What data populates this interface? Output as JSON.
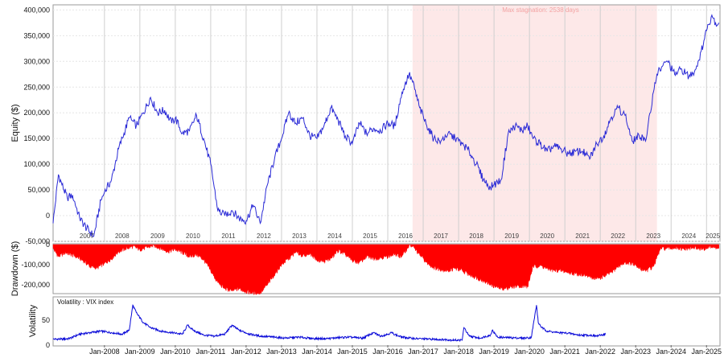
{
  "colors": {
    "equity": "#2b2bd6",
    "drawdown": "#ff0000",
    "volatility": "#0a0ad8",
    "stagnation": "#fde8e8",
    "grid": "#d9d9d9",
    "frame": "#9a9a9a"
  },
  "chart_data": [
    {
      "type": "line",
      "ylabel": "Equity ($)",
      "ylim": [
        -50000,
        410000
      ],
      "yticks": [
        {
          "value": 400000,
          "label": "400,000"
        },
        {
          "value": 350000,
          "label": "350,000"
        },
        {
          "value": 300000,
          "label": "300,000"
        },
        {
          "value": 250000,
          "label": "250,000"
        },
        {
          "value": 200000,
          "label": "200,000"
        },
        {
          "value": 150000,
          "label": "150,000"
        },
        {
          "value": 100000,
          "label": "100,000"
        },
        {
          "value": 50000,
          "label": "50,000"
        },
        {
          "value": 0,
          "label": "0"
        },
        {
          "value": -50000,
          "label": "-50,000"
        }
      ],
      "year_labels": [
        {
          "x": 2007.0,
          "label": "2007"
        },
        {
          "x": 2008.0,
          "label": "2008"
        },
        {
          "x": 2009.0,
          "label": "2009"
        },
        {
          "x": 2010.0,
          "label": "2010"
        },
        {
          "x": 2011.0,
          "label": "2011"
        },
        {
          "x": 2012.0,
          "label": "2012"
        },
        {
          "x": 2013.0,
          "label": "2013"
        },
        {
          "x": 2014.0,
          "label": "2014"
        },
        {
          "x": 2015.0,
          "label": "2015"
        },
        {
          "x": 2016.0,
          "label": "2016"
        },
        {
          "x": 2017.0,
          "label": "2017"
        },
        {
          "x": 2018.0,
          "label": "2018"
        },
        {
          "x": 2019.0,
          "label": "2019"
        },
        {
          "x": 2020.0,
          "label": "2020"
        },
        {
          "x": 2021.0,
          "label": "2021"
        },
        {
          "x": 2022.0,
          "label": "2022"
        },
        {
          "x": 2023.0,
          "label": "2023"
        },
        {
          "x": 2024.0,
          "label": "2024"
        },
        {
          "x": 2025.0,
          "label": "2025"
        }
      ],
      "stagnation": {
        "start": 2016.7,
        "end": 2023.6,
        "label": "Max stagnation: 2538 days"
      },
      "x": [
        2006.55,
        2006.7,
        2006.8,
        2006.95,
        2007.1,
        2007.3,
        2007.5,
        2007.7,
        2007.9,
        2008.0,
        2008.2,
        2008.4,
        2008.55,
        2008.7,
        2008.9,
        2009.1,
        2009.3,
        2009.5,
        2009.7,
        2009.9,
        2010.0,
        2010.2,
        2010.4,
        2010.6,
        2010.8,
        2011.0,
        2011.2,
        2011.4,
        2011.6,
        2011.8,
        2012.0,
        2012.2,
        2012.4,
        2012.6,
        2012.8,
        2013.0,
        2013.2,
        2013.4,
        2013.6,
        2013.8,
        2014.0,
        2014.2,
        2014.4,
        2014.6,
        2014.8,
        2015.0,
        2015.2,
        2015.4,
        2015.6,
        2015.8,
        2016.0,
        2016.2,
        2016.4,
        2016.6,
        2016.7,
        2016.9,
        2017.1,
        2017.3,
        2017.5,
        2017.7,
        2017.9,
        2018.1,
        2018.3,
        2018.5,
        2018.7,
        2018.9,
        2019.0,
        2019.2,
        2019.4,
        2019.6,
        2019.8,
        2019.95,
        2020.1,
        2020.3,
        2020.5,
        2020.7,
        2020.9,
        2021.1,
        2021.3,
        2021.5,
        2021.7,
        2021.9,
        2022.1,
        2022.3,
        2022.5,
        2022.7,
        2022.9,
        2023.1,
        2023.3,
        2023.5,
        2023.6,
        2023.75,
        2023.9,
        2024.1,
        2024.3,
        2024.5,
        2024.7,
        2024.85,
        2025.0,
        2025.15,
        2025.3,
        2025.35
      ],
      "y": [
        -15000,
        80000,
        60000,
        35000,
        40000,
        -5000,
        -25000,
        -40000,
        30000,
        45000,
        70000,
        130000,
        160000,
        190000,
        175000,
        200000,
        230000,
        200000,
        205000,
        180000,
        190000,
        160000,
        165000,
        195000,
        150000,
        100000,
        10000,
        0,
        10000,
        -5000,
        -10000,
        20000,
        -15000,
        60000,
        110000,
        150000,
        200000,
        180000,
        190000,
        155000,
        150000,
        175000,
        210000,
        185000,
        155000,
        140000,
        180000,
        160000,
        170000,
        165000,
        180000,
        175000,
        240000,
        275000,
        260000,
        210000,
        175000,
        150000,
        145000,
        160000,
        150000,
        140000,
        125000,
        100000,
        70000,
        55000,
        60000,
        70000,
        160000,
        175000,
        165000,
        175000,
        150000,
        140000,
        125000,
        135000,
        130000,
        120000,
        125000,
        125000,
        110000,
        140000,
        155000,
        190000,
        210000,
        195000,
        145000,
        155000,
        150000,
        240000,
        275000,
        290000,
        300000,
        275000,
        285000,
        270000,
        285000,
        320000,
        360000,
        390000,
        370000,
        375000
      ]
    },
    {
      "type": "area",
      "ylabel": "Drawdown ($)",
      "ylim": [
        -240000,
        0
      ],
      "yticks": [
        {
          "value": 0,
          "label": "0"
        },
        {
          "value": -100000,
          "label": "-100,000"
        },
        {
          "value": -200000,
          "label": "-200,000"
        }
      ],
      "x": [
        2006.55,
        2006.7,
        2006.9,
        2007.2,
        2007.4,
        2007.6,
        2007.8,
        2008.0,
        2008.2,
        2008.4,
        2008.6,
        2008.8,
        2009.0,
        2009.2,
        2009.4,
        2009.6,
        2009.8,
        2010.0,
        2010.2,
        2010.4,
        2010.6,
        2010.8,
        2011.0,
        2011.2,
        2011.4,
        2011.6,
        2011.8,
        2012.0,
        2012.2,
        2012.4,
        2012.6,
        2012.8,
        2013.0,
        2013.2,
        2013.4,
        2013.6,
        2013.8,
        2014.0,
        2014.2,
        2014.4,
        2014.6,
        2014.8,
        2015.0,
        2015.2,
        2015.4,
        2015.6,
        2015.8,
        2016.0,
        2016.2,
        2016.4,
        2016.6,
        2016.7,
        2016.9,
        2017.1,
        2017.3,
        2017.5,
        2017.7,
        2017.9,
        2018.1,
        2018.3,
        2018.5,
        2018.7,
        2018.9,
        2019.1,
        2019.3,
        2019.5,
        2019.7,
        2019.95,
        2020.1,
        2020.3,
        2020.5,
        2020.7,
        2020.9,
        2021.1,
        2021.3,
        2021.5,
        2021.7,
        2021.9,
        2022.1,
        2022.3,
        2022.5,
        2022.7,
        2022.9,
        2023.1,
        2023.3,
        2023.5,
        2023.7,
        2023.9,
        2024.1,
        2024.3,
        2024.5,
        2024.7,
        2024.9,
        2025.1,
        2025.35
      ],
      "y": [
        -20000,
        -60000,
        -40000,
        -60000,
        -80000,
        -110000,
        -115000,
        -95000,
        -70000,
        -35000,
        -20000,
        -10000,
        -25000,
        -15000,
        -5000,
        -20000,
        -35000,
        -25000,
        -40000,
        -60000,
        -50000,
        -75000,
        -130000,
        -190000,
        -220000,
        -230000,
        -220000,
        -235000,
        -240000,
        -240000,
        -200000,
        -150000,
        -100000,
        -70000,
        -40000,
        -55000,
        -45000,
        -75000,
        -85000,
        -70000,
        -30000,
        -50000,
        -80000,
        -90000,
        -60000,
        -70000,
        -65000,
        -60000,
        -50000,
        -60000,
        -5000,
        -10000,
        -50000,
        -90000,
        -115000,
        -125000,
        -130000,
        -120000,
        -130000,
        -150000,
        -165000,
        -180000,
        -200000,
        -215000,
        -220000,
        -210000,
        -205000,
        -210000,
        -110000,
        -105000,
        -120000,
        -130000,
        -130000,
        -140000,
        -145000,
        -150000,
        -160000,
        -170000,
        -160000,
        -140000,
        -110000,
        -90000,
        -95000,
        -120000,
        -130000,
        -110000,
        -20000,
        -20000,
        -15000,
        -25000,
        -20000,
        -15000,
        -25000,
        -10000,
        -20000
      ]
    },
    {
      "type": "line",
      "ylabel": "Volatility",
      "legend": "Volatility : VIX index",
      "ylim": [
        0,
        95
      ],
      "yticks": [
        {
          "value": 0,
          "label": "0"
        },
        {
          "value": 50,
          "label": "50"
        }
      ],
      "xticks": [
        {
          "x": 2008.0,
          "label": "Jan-2008"
        },
        {
          "x": 2009.0,
          "label": "Jan-2009"
        },
        {
          "x": 2010.0,
          "label": "Jan-2010"
        },
        {
          "x": 2011.0,
          "label": "Jan-2011"
        },
        {
          "x": 2012.0,
          "label": "Jan-2012"
        },
        {
          "x": 2013.0,
          "label": "Jan-2013"
        },
        {
          "x": 2014.0,
          "label": "Jan-2014"
        },
        {
          "x": 2015.0,
          "label": "Jan-2015"
        },
        {
          "x": 2016.0,
          "label": "Jan-2016"
        },
        {
          "x": 2017.0,
          "label": "Jan-2017"
        },
        {
          "x": 2018.0,
          "label": "Jan-2018"
        },
        {
          "x": 2019.0,
          "label": "Jan-2019"
        },
        {
          "x": 2020.0,
          "label": "Jan-2020"
        },
        {
          "x": 2021.0,
          "label": "Jan-2021"
        },
        {
          "x": 2022.0,
          "label": "Jan-2022"
        },
        {
          "x": 2023.0,
          "label": "Jan-2023"
        },
        {
          "x": 2024.0,
          "label": "Jan-2024"
        },
        {
          "x": 2025.0,
          "label": "Jan-2025"
        }
      ],
      "x": [
        2006.55,
        2006.8,
        2007.0,
        2007.3,
        2007.6,
        2007.9,
        2008.2,
        2008.5,
        2008.7,
        2008.8,
        2008.9,
        2009.1,
        2009.3,
        2009.6,
        2009.9,
        2010.2,
        2010.35,
        2010.5,
        2010.8,
        2011.1,
        2011.4,
        2011.6,
        2011.8,
        2012.1,
        2012.4,
        2012.8,
        2013.1,
        2013.5,
        2013.9,
        2014.3,
        2014.6,
        2014.9,
        2015.3,
        2015.6,
        2015.8,
        2016.0,
        2016.1,
        2016.3,
        2016.5,
        2016.8,
        2017.2,
        2017.6,
        2017.9,
        2018.1,
        2018.15,
        2018.3,
        2018.6,
        2018.9,
        2018.95,
        2019.1,
        2019.4,
        2019.8,
        2020.05,
        2020.2,
        2020.25,
        2020.35,
        2020.5,
        2020.8,
        2021.1,
        2021.4,
        2021.7,
        2021.9,
        2022.0,
        2022.15
      ],
      "y": [
        12,
        12,
        13,
        22,
        25,
        28,
        25,
        22,
        30,
        80,
        65,
        45,
        35,
        28,
        25,
        22,
        40,
        30,
        20,
        18,
        22,
        40,
        30,
        22,
        18,
        16,
        14,
        16,
        13,
        13,
        15,
        16,
        14,
        25,
        18,
        22,
        25,
        18,
        15,
        13,
        12,
        11,
        10,
        10,
        35,
        18,
        14,
        20,
        30,
        16,
        15,
        14,
        15,
        80,
        45,
        35,
        28,
        25,
        24,
        20,
        20,
        18,
        20,
        22
      ]
    }
  ]
}
